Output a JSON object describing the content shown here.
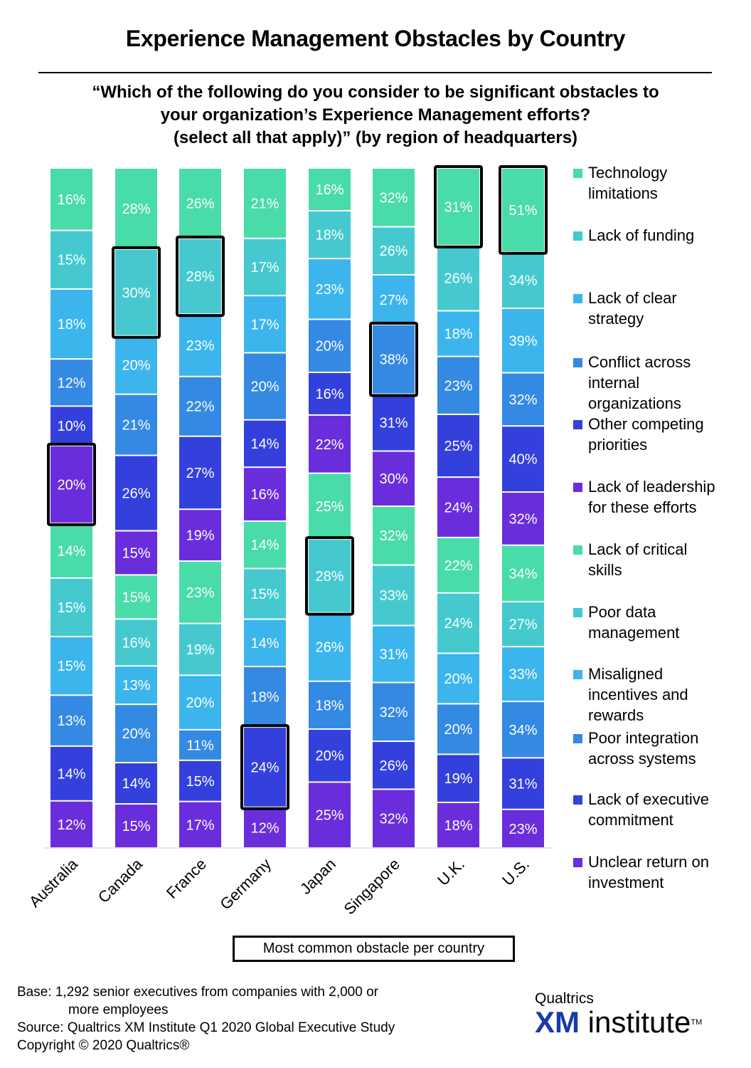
{
  "title": "Experience Management Obstacles by Country",
  "question_lines": [
    "“Which of the following do you consider to be significant obstacles to",
    "your organization’s Experience Management efforts?",
    "(select all that apply)” (by region of headquarters)"
  ],
  "chart_data": {
    "type": "bar",
    "stacked": true,
    "title": "Experience Management Obstacles by Country",
    "categories": [
      "Australia",
      "Canada",
      "France",
      "Germany",
      "Japan",
      "Singapore",
      "U.K.",
      "U.S."
    ],
    "value_unit": "%",
    "legend_position": "right",
    "grid": false,
    "series": [
      {
        "name": "Technology limitations",
        "color": "#49dba8",
        "values": [
          16,
          28,
          26,
          21,
          16,
          32,
          31,
          51
        ]
      },
      {
        "name": "Lack of funding",
        "color": "#45c9cf",
        "values": [
          15,
          30,
          28,
          17,
          18,
          26,
          26,
          34
        ]
      },
      {
        "name": "Lack of clear strategy",
        "color": "#3bb5ec",
        "values": [
          18,
          20,
          23,
          17,
          23,
          27,
          18,
          39
        ]
      },
      {
        "name": "Conflict across internal organizations",
        "color": "#3489e2",
        "values": [
          12,
          21,
          22,
          20,
          20,
          38,
          23,
          32
        ]
      },
      {
        "name": "Other competing priorities",
        "color": "#3340dc",
        "values": [
          10,
          26,
          27,
          14,
          16,
          31,
          25,
          40
        ]
      },
      {
        "name": "Lack of leadership for these efforts",
        "color": "#6a2ddc",
        "values": [
          20,
          15,
          19,
          16,
          22,
          30,
          24,
          32
        ]
      },
      {
        "name": "Lack of critical skills",
        "color": "#49dba8",
        "values": [
          14,
          15,
          23,
          14,
          25,
          32,
          22,
          34
        ]
      },
      {
        "name": "Poor data management",
        "color": "#45c9cf",
        "values": [
          15,
          16,
          19,
          15,
          28,
          33,
          24,
          27
        ]
      },
      {
        "name": "Misaligned incentives and rewards",
        "color": "#3bb5ec",
        "values": [
          15,
          13,
          20,
          14,
          26,
          31,
          20,
          33
        ]
      },
      {
        "name": "Poor integration across systems",
        "color": "#3489e2",
        "values": [
          13,
          20,
          11,
          18,
          18,
          32,
          20,
          34
        ]
      },
      {
        "name": "Lack of executive commitment",
        "color": "#3340dc",
        "values": [
          14,
          14,
          15,
          24,
          20,
          26,
          19,
          31
        ]
      },
      {
        "name": "Unclear return on investment",
        "color": "#6a2ddc",
        "values": [
          12,
          15,
          17,
          12,
          25,
          32,
          18,
          23
        ]
      }
    ],
    "most_common_obstacle": [
      {
        "category": "Australia",
        "series": "Lack of leadership for these efforts"
      },
      {
        "category": "Canada",
        "series": "Lack of funding"
      },
      {
        "category": "France",
        "series": "Lack of funding"
      },
      {
        "category": "Germany",
        "series": "Lack of executive commitment"
      },
      {
        "category": "Japan",
        "series": "Poor data management"
      },
      {
        "category": "Singapore",
        "series": "Conflict across internal organizations"
      },
      {
        "category": "U.K.",
        "series": "Technology limitations"
      },
      {
        "category": "U.S.",
        "series": "Technology limitations"
      }
    ]
  },
  "legend": [
    {
      "label": "Technology\nlimitations",
      "color": "#49dba8"
    },
    {
      "label": "Lack of funding",
      "color": "#45c9cf"
    },
    {
      "label": "Lack of clear\nstrategy",
      "color": "#3bb5ec"
    },
    {
      "label": "Conflict across\ninternal\norganizations",
      "color": "#3489e2"
    },
    {
      "label": "Other competing\npriorities",
      "color": "#3340dc"
    },
    {
      "label": "Lack of leadership\nfor these efforts",
      "color": "#6a2ddc"
    },
    {
      "label": "Lack of critical\nskills",
      "color": "#49dba8"
    },
    {
      "label": "Poor data\nmanagement",
      "color": "#45c9cf"
    },
    {
      "label": "Misaligned\nincentives and\nrewards",
      "color": "#3bb5ec"
    },
    {
      "label": "Poor integration\nacross systems",
      "color": "#3489e2"
    },
    {
      "label": "Lack of executive\ncommitment",
      "color": "#3340dc"
    },
    {
      "label": "Unclear return on\ninvestment",
      "color": "#6a2ddc"
    }
  ],
  "key_label": "Most common obstacle per country",
  "footnote": {
    "base_line1": "Base: 1,292 senior executives from companies with 2,000 or",
    "base_line2": "more employees",
    "source": "Source: Qualtrics XM Institute Q1 2020 Global Executive Study",
    "copyright": "Copyright © 2020 Qualtrics®"
  },
  "logo": {
    "brand": "Qualtrics",
    "xm": "XM",
    "institute": "institute",
    "tm": "TM"
  }
}
